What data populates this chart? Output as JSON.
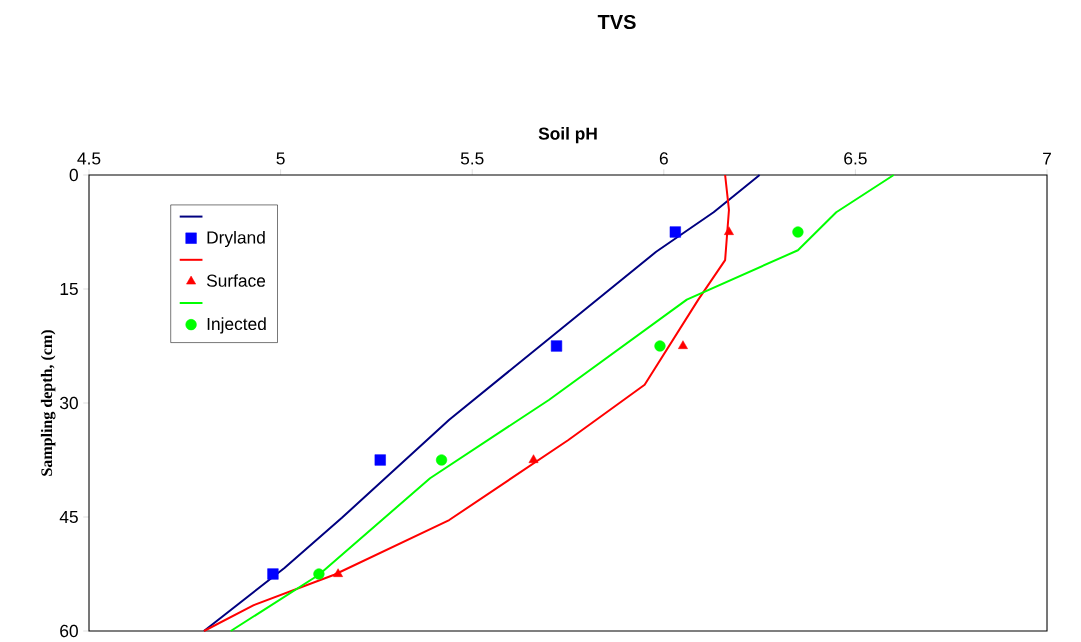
{
  "chart_data": {
    "type": "scatter",
    "title": "TVS",
    "xlabel": "Soil pH",
    "ylabel": "Sampling depth, (cm)",
    "xlim": [
      4.5,
      7
    ],
    "xticks": [
      4.5,
      5,
      5.5,
      6,
      6.5,
      7
    ],
    "ylim": [
      60,
      0
    ],
    "yticks": [
      0,
      15,
      30,
      45,
      60
    ],
    "grid": false,
    "legend": "top left",
    "series": [
      {
        "type": "line",
        "color": "#000080",
        "line_style": "solid",
        "marker": "none",
        "x": [
          6.25,
          6.13,
          5.98,
          5.44,
          5.16,
          5.01,
          4.8
        ],
        "values": [
          0,
          4.9,
          10.1,
          32.2,
          45.1,
          51.7,
          60
        ]
      },
      {
        "name": "Dryland",
        "color": "#0000ff",
        "marker": "square",
        "x": [
          6.03,
          5.72,
          5.26,
          4.98
        ],
        "values": [
          7.5,
          22.5,
          37.5,
          52.5
        ]
      },
      {
        "type": "line",
        "color": "#ff0000",
        "line_style": "solid",
        "marker": "none",
        "x": [
          6.16,
          6.17,
          6.16,
          6.09,
          5.95,
          5.75,
          5.44,
          5.14,
          4.93,
          4.8
        ],
        "values": [
          0,
          4.6,
          11.2,
          16.4,
          27.6,
          34.9,
          45.4,
          52.6,
          56.6,
          60
        ]
      },
      {
        "name": "Surface",
        "color": "#ff0000",
        "marker": "triangle",
        "x": [
          6.17,
          6.05,
          5.66,
          5.15
        ],
        "values": [
          7.5,
          22.5,
          37.5,
          52.5
        ]
      },
      {
        "type": "line",
        "color": "#00ff00",
        "line_style": "solid",
        "marker": "none",
        "x": [
          6.6,
          6.45,
          6.35,
          6.06,
          5.7,
          5.39,
          5.1,
          4.87
        ],
        "values": [
          0,
          4.9,
          9.9,
          16.4,
          29.6,
          39.9,
          52.6,
          60
        ]
      },
      {
        "name": "Injected",
        "color": "#00ff00",
        "marker": "circle",
        "x": [
          6.35,
          5.99,
          5.42,
          5.1
        ],
        "values": [
          7.5,
          22.5,
          37.5,
          52.5
        ]
      }
    ]
  }
}
